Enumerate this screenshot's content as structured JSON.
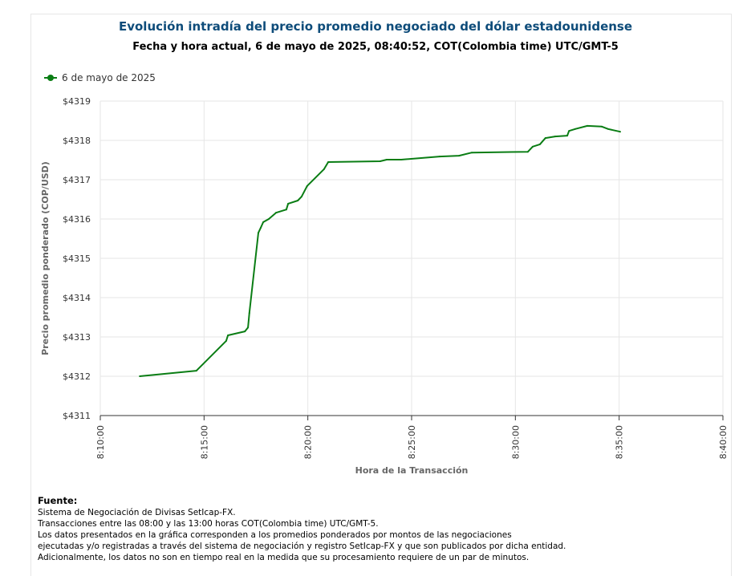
{
  "title": "Evolución intradía del precio promedio negociado del dólar estadounidense",
  "subtitle": "Fecha y hora actual, 6 de mayo de 2025, 08:40:52, COT(Colombia time) UTC/GMT-5",
  "source": {
    "heading": "Fuente:",
    "lines": [
      "Sistema de Negociación de Divisas SetIcap-FX.",
      "Transacciones entre las 08:00 y las 13:00 horas COT(Colombia time) UTC/GMT-5.",
      "Los datos presentados en la gráfica corresponden a los promedios ponderados por montos de las negociaciones",
      "ejecutadas y/o registradas a través del sistema de negociación y registro SetIcap-FX y que son publicados por dicha entidad.",
      "Adicionalmente, los datos no son en tiempo real en la medida que su procesamiento requiere de un par de minutos."
    ]
  },
  "chart_data": {
    "type": "line",
    "xlabel": "Hora de la Transacción",
    "ylabel": "Precio promedio ponderado (COP/USD)",
    "xlim": [
      "8:10:00",
      "8:40:00"
    ],
    "ylim": [
      4311,
      4319
    ],
    "x_ticks": [
      "8:10:00",
      "8:15:00",
      "8:20:00",
      "8:25:00",
      "8:30:00",
      "8:35:00",
      "8:40:00"
    ],
    "y_ticks": [
      "$4311",
      "$4312",
      "$4313",
      "$4314",
      "$4315",
      "$4316",
      "$4317",
      "$4318",
      "$4319"
    ],
    "grid": true,
    "legend_position": "top-left",
    "series": [
      {
        "name": "6 de mayo de 2025",
        "color": "#0a7d14",
        "x": [
          "8:11:54",
          "8:14:38",
          "8:16:04",
          "8:16:09",
          "8:16:58",
          "8:17:07",
          "8:17:11",
          "8:17:37",
          "8:17:44",
          "8:17:51",
          "8:18:07",
          "8:18:28",
          "8:18:58",
          "8:19:03",
          "8:19:31",
          "8:19:42",
          "8:19:58",
          "8:20:47",
          "8:20:59",
          "8:23:29",
          "8:23:48",
          "8:24:30",
          "8:26:21",
          "8:27:17",
          "8:27:54",
          "8:30:36",
          "8:30:50",
          "8:31:11",
          "8:31:27",
          "8:31:55",
          "8:32:30",
          "8:32:35",
          "8:32:53",
          "8:33:28",
          "8:34:10",
          "8:34:28",
          "8:35:03"
        ],
        "y": [
          4312.0,
          4312.14,
          4312.9,
          4313.04,
          4313.14,
          4313.24,
          4313.61,
          4315.65,
          4315.78,
          4315.92,
          4316.0,
          4316.16,
          4316.24,
          4316.39,
          4316.47,
          4316.57,
          4316.84,
          4317.27,
          4317.45,
          4317.47,
          4317.51,
          4317.51,
          4317.59,
          4317.61,
          4317.69,
          4317.71,
          4317.84,
          4317.9,
          4318.06,
          4318.1,
          4318.12,
          4318.24,
          4318.29,
          4318.37,
          4318.35,
          4318.29,
          4318.22
        ]
      }
    ]
  }
}
